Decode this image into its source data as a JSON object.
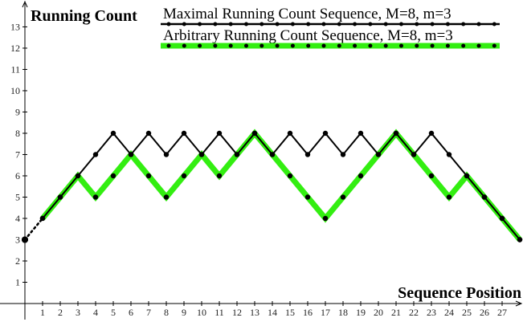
{
  "chart_data": {
    "type": "line",
    "y_label": "Running Count",
    "x_label": "Sequence Position",
    "x": [
      0,
      1,
      2,
      3,
      4,
      5,
      6,
      7,
      8,
      9,
      10,
      11,
      12,
      13,
      14,
      15,
      16,
      17,
      18,
      19,
      20,
      21,
      22,
      23,
      24,
      25,
      26,
      27,
      28
    ],
    "series": [
      {
        "name": "Maximal Running Count Sequence, M=8, m=3",
        "color": "#000000",
        "values": [
          3,
          4,
          5,
          6,
          7,
          8,
          7,
          8,
          7,
          8,
          7,
          8,
          7,
          8,
          7,
          8,
          7,
          8,
          7,
          8,
          7,
          8,
          7,
          8,
          7,
          6,
          5,
          4,
          3
        ]
      },
      {
        "name": "Arbitrary Running Count Sequence, M=8, m=3",
        "color": "#33ee11",
        "values": [
          3,
          4,
          5,
          6,
          5,
          6,
          7,
          6,
          5,
          6,
          7,
          6,
          7,
          8,
          7,
          6,
          5,
          4,
          5,
          6,
          7,
          8,
          7,
          6,
          5,
          6,
          5,
          4,
          3
        ]
      }
    ],
    "xlim": [
      0,
      28
    ],
    "ylim": [
      0,
      13.3
    ],
    "xticks": [
      1,
      2,
      3,
      4,
      5,
      6,
      7,
      8,
      9,
      10,
      11,
      12,
      13,
      14,
      15,
      16,
      17,
      18,
      19,
      20,
      21,
      22,
      23,
      24,
      25,
      26,
      27
    ],
    "yticks": [
      1,
      2,
      3,
      4,
      5,
      6,
      7,
      8,
      9,
      10,
      11,
      12,
      13
    ],
    "legend": "top"
  }
}
